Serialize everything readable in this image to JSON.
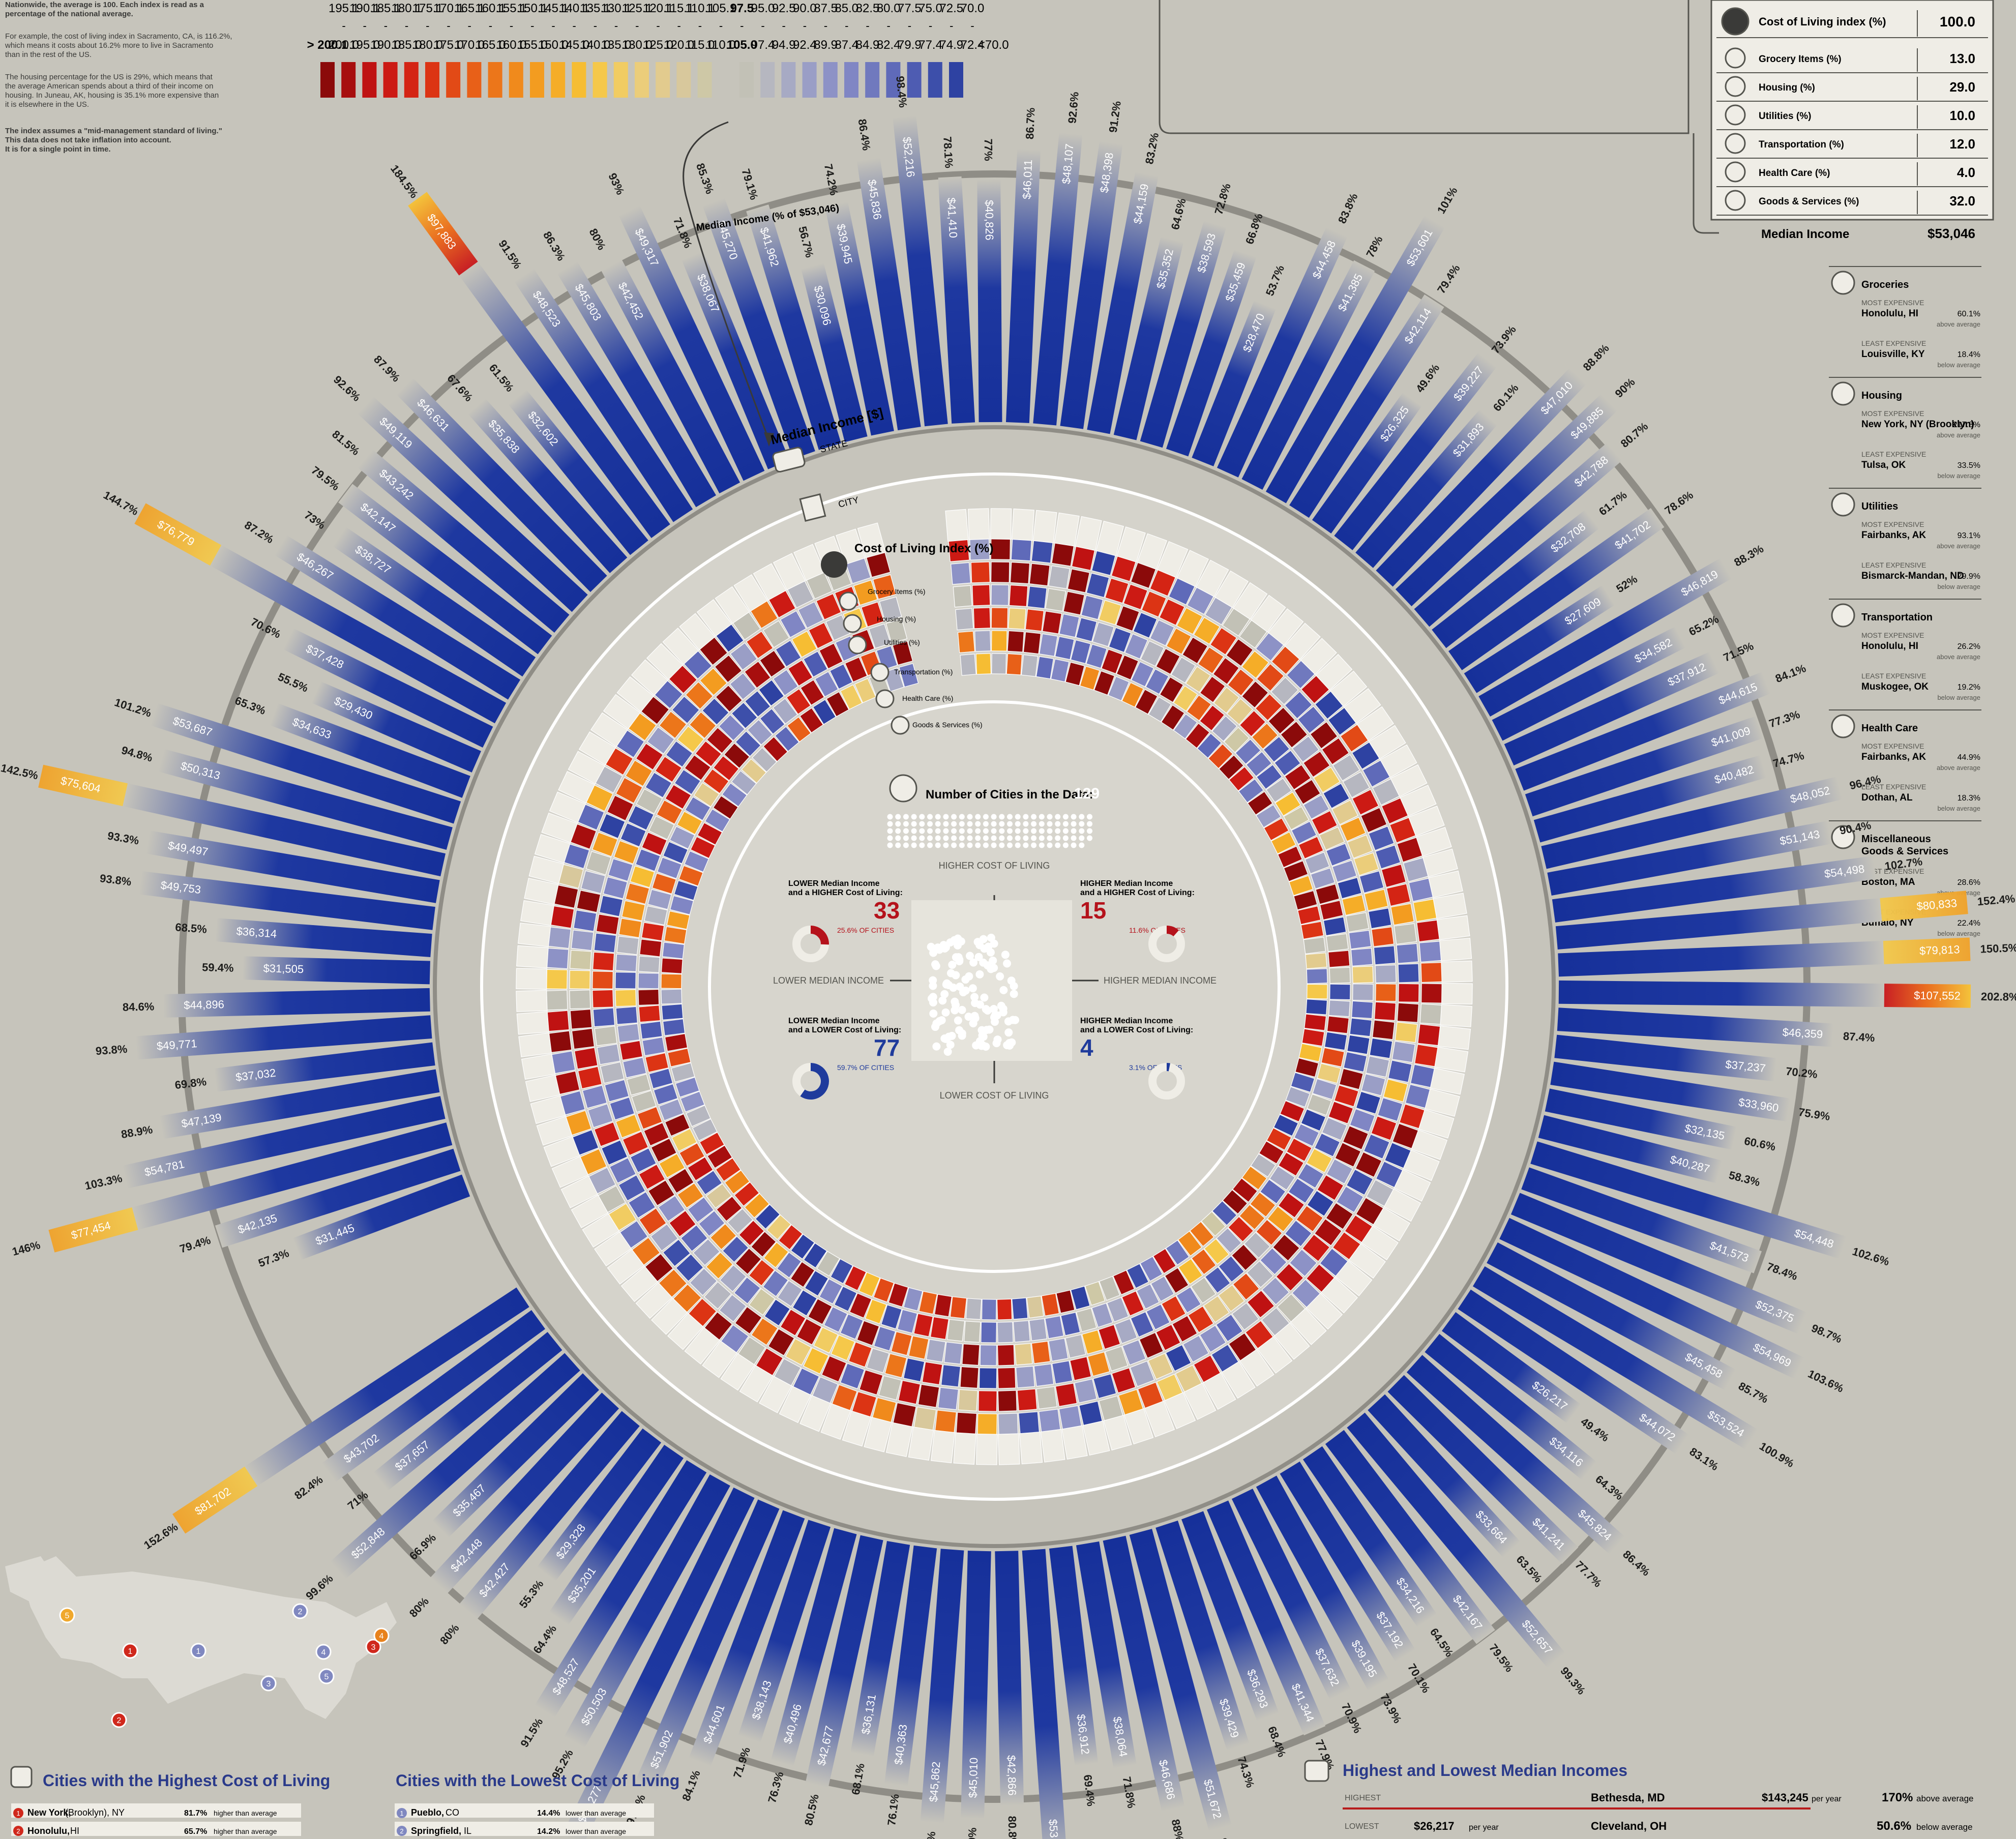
{
  "intro": {
    "line1": "Nationwide, the average is 100. Each index is read as a",
    "line2": "percentage of the national average.",
    "line3": "For example, the cost of living index in Sacramento, CA, is 116.2%,",
    "line4": "which means it costs about 16.2% more to live in Sacramento",
    "line5": "than in the rest of the US.",
    "line6": "The housing percentage for the US is 29%, which means that",
    "line7": "the average American spends about a third of their income on",
    "line8": "housing. In Juneau, AK, housing is 35.1% more expensive than",
    "line9": "it is elsewhere in the US.",
    "line10": "The index assumes a \"mid-management standard of living.\"",
    "line11": "This data does not take inflation into account.",
    "line12": "It is for a single point in time."
  },
  "scale": {
    "colors": [
      "#8b0a0a",
      "#a70e0e",
      "#bf1212",
      "#cc1a14",
      "#d42414",
      "#dc3414",
      "#e24a16",
      "#e86018",
      "#ec761a",
      "#f08a1c",
      "#f39c20",
      "#f5ad28",
      "#f6bd33",
      "#f5c84a",
      "#f1cc62",
      "#ebcd7a",
      "#e2cb8e",
      "#d8c89c",
      "#cec8a6",
      "#c2c1b6",
      "#b6b7c0",
      "#a7aac4",
      "#9a9ec6",
      "#8d92c6",
      "#8086c4",
      "#7079be",
      "#5f6ab9",
      "#4e5cb2",
      "#3d4faa",
      "#2e42a2"
    ],
    "uppers": [
      "",
      "195.1",
      "190.1",
      "185.1",
      "180.1",
      "175.1",
      "170.1",
      "165.1",
      "160.1",
      "155.1",
      "150.1",
      "145.1",
      "140.1",
      "135.1",
      "130.1",
      "125.1",
      "120.1",
      "115.1",
      "110.1",
      "105.1",
      "97.5",
      "95.0",
      "92.5",
      "90.0",
      "87.5",
      "85.0",
      "82.5",
      "80.0",
      "77.5",
      "75.0",
      "72.5",
      "70.0"
    ],
    "lowers": [
      "> 200.1",
      "200.0",
      "195.0",
      "190.0",
      "185.0",
      "180.0",
      "175.0",
      "170.0",
      "165.0",
      "160.0",
      "155.0",
      "150.0",
      "145.0",
      "140.0",
      "135.0",
      "130.0",
      "125.0",
      "120.0",
      "115.0",
      "110.0",
      "105.0",
      "97.4",
      "94.9",
      "92.4",
      "89.9",
      "87.4",
      "84.9",
      "82.4",
      "79.9",
      "77.4",
      "74.9",
      "72.4",
      "<70.0"
    ]
  },
  "legend_table": {
    "rows": [
      {
        "icon": "gauge-icon",
        "label": "Cost of Living index (%)",
        "value": "100.0"
      },
      {
        "icon": "fork-knife-icon",
        "label": "Grocery Items (%)",
        "value": "13.0"
      },
      {
        "icon": "house-icon",
        "label": "Housing (%)",
        "value": "29.0"
      },
      {
        "icon": "bulb-icon",
        "label": "Utilities (%)",
        "value": "10.0"
      },
      {
        "icon": "car-icon",
        "label": "Transportation (%)",
        "value": "12.0"
      },
      {
        "icon": "cross-icon",
        "label": "Health Care (%)",
        "value": "4.0"
      },
      {
        "icon": "shirt-icon",
        "label": "Goods & Services (%)",
        "value": "32.0"
      }
    ],
    "median_label": "Median Income",
    "median_value": "$53,046"
  },
  "extremes": [
    {
      "icon": "fork-knife-icon",
      "title": "Groceries",
      "most_label": "MOST EXPENSIVE",
      "most_city": "Honolulu, HI",
      "most_value": "60.1%",
      "most_note": "above average",
      "least_label": "LEAST EXPENSIVE",
      "least_city": "Louisville, KY",
      "least_value": "18.4%",
      "least_note": "below average"
    },
    {
      "icon": "house-icon",
      "title": "Housing",
      "most_label": "MOST EXPENSIVE",
      "most_city": "New York, NY (Brooklyn)",
      "most_value": "217.8%",
      "most_note": "above average",
      "least_label": "LEAST EXPENSIVE",
      "least_city": "Tulsa, OK",
      "least_value": "33.5%",
      "least_note": "below average"
    },
    {
      "icon": "bulb-icon",
      "title": "Utilities",
      "most_label": "MOST EXPENSIVE",
      "most_city": "Fairbanks, AK",
      "most_value": "93.1%",
      "most_note": "above average",
      "least_label": "LEAST EXPENSIVE",
      "least_city": "Bismarck-Mandan, ND",
      "least_value": "29.9%",
      "least_note": "below average"
    },
    {
      "icon": "car-icon",
      "title": "Transportation",
      "most_label": "MOST EXPENSIVE",
      "most_city": "Honolulu, HI",
      "most_value": "26.2%",
      "most_note": "above average",
      "least_label": "LEAST EXPENSIVE",
      "least_city": "Muskogee, OK",
      "least_value": "19.2%",
      "least_note": "below average"
    },
    {
      "icon": "cross-icon",
      "title": "Health Care",
      "most_label": "MOST EXPENSIVE",
      "most_city": "Fairbanks, AK",
      "most_value": "44.9%",
      "most_note": "above average",
      "least_label": "LEAST EXPENSIVE",
      "least_city": "Dothan, AL",
      "least_value": "18.3%",
      "least_note": "below average"
    },
    {
      "icon": "shirt-icon",
      "title": "Miscellaneous Goods & Services",
      "most_label": "MOST EXPENSIVE",
      "most_city": "Boston, MA",
      "most_value": "28.6%",
      "most_note": "above average",
      "least_label": "LEAST EXPENSIVE",
      "least_city": "Buffalo, NY",
      "least_value": "22.4%",
      "least_note": "below average"
    }
  ],
  "ring_labels": {
    "median_income_pct": "Median Income (% of $53,046)",
    "median_income": "Median Income [$]",
    "state": "STATE",
    "city": "CITY",
    "col": "Cost of Living Index (%)",
    "grocery": "Grocery Items (%)",
    "housing": "Housing (%)",
    "utilities": "Utilities (%)",
    "transportation": "Transportation (%)",
    "health": "Health Care (%)",
    "goods": "Goods & Services (%)"
  },
  "center": {
    "count_label": "Number of Cities in the Data:",
    "count_value": "129",
    "higher_col": "HIGHER COST OF LIVING",
    "lower_col": "LOWER COST OF LIVING",
    "lower_income": "LOWER MEDIAN INCOME",
    "higher_income": "HIGHER MEDIAN INCOME",
    "quadrants": [
      {
        "line1": "LOWER Median Income",
        "line2": "and a HIGHER Cost of Living:",
        "count": "33",
        "pct": "25.6% OF CITIES",
        "color": "#b5121b",
        "fraction": 0.256
      },
      {
        "line1": "HIGHER Median Income",
        "line2": "and a HIGHER Cost of Living:",
        "count": "15",
        "pct": "11.6% OF CITIES",
        "color": "#b5121b",
        "fraction": 0.116
      },
      {
        "line1": "LOWER Median Income",
        "line2": "and a LOWER Cost of Living:",
        "count": "77",
        "pct": "59.7% OF CITIES",
        "color": "#1f3b9c",
        "fraction": 0.597
      },
      {
        "line1": "HIGHER Median Income",
        "line2": "and a LOWER Cost of Living:",
        "count": "4",
        "pct": "3.1% OF CITIES",
        "color": "#1f3b9c",
        "fraction": 0.031
      }
    ]
  },
  "map_markers": [
    {
      "n": "1",
      "color": "#8088c0"
    },
    {
      "n": "2",
      "color": "#8088c0"
    },
    {
      "n": "3",
      "color": "#8088c0"
    },
    {
      "n": "4",
      "color": "#8088c0"
    },
    {
      "n": "5",
      "color": "#8088c0"
    },
    {
      "n": "1",
      "color": "#d0281c"
    },
    {
      "n": "2",
      "color": "#d0281c"
    },
    {
      "n": "3",
      "color": "#d0281c"
    },
    {
      "n": "4",
      "color": "#e8821c"
    },
    {
      "n": "5",
      "color": "#f0a82c"
    }
  ],
  "bottom": {
    "highest_title": "Cities with the Highest Cost of Living",
    "highest": [
      {
        "n": "1",
        "city": "New York,",
        "detail": "(Brooklyn), NY",
        "pct": "81.7%",
        "note": "higher than average"
      },
      {
        "n": "2",
        "city": "Honolulu,",
        "detail": "HI",
        "pct": "65.7%",
        "note": "higher than average"
      }
    ],
    "lowest_title": "Cities with the Lowest Cost of Living",
    "lowest": [
      {
        "n": "1",
        "city": "Pueblo,",
        "detail": "CO",
        "pct": "14.4%",
        "note": "lower than average"
      },
      {
        "n": "2",
        "city": "Springfield,",
        "detail": "IL",
        "pct": "14.2%",
        "note": "lower than average"
      }
    ],
    "income_title": "Highest and Lowest Median Incomes",
    "highest_label": "HIGHEST",
    "highest_city": "Bethesda, MD",
    "highest_value": "$143,245",
    "highest_per": "per year",
    "highest_pct": "170%",
    "highest_note": "above average",
    "lowest_label": "LOWEST",
    "lowest_value": "$26,217",
    "lowest_per": "per year",
    "lowest_city": "Cleveland, OH",
    "lowest_pct": "50.6%",
    "lowest_note": "below average"
  },
  "chart_data": {
    "type": "radial-bar",
    "title": "",
    "series": [
      {
        "name": "Median Income (% of $53,046)",
        "values": [
          57.3,
          79.4,
          146.0,
          103.3,
          88.9,
          69.8,
          93.8,
          84.6,
          59.4,
          68.5,
          93.8,
          93.3,
          142.5,
          94.8,
          101.2,
          65.3,
          55.5,
          70.6,
          144.7,
          87.2,
          73.0,
          79.5,
          81.5,
          92.6,
          87.9,
          67.6,
          61.5,
          184.5,
          91.5,
          86.3,
          80.0,
          93.0,
          71.8,
          85.3,
          79.1,
          56.7,
          74.2,
          86.4,
          98.4,
          78.1,
          77.0,
          86.7,
          92.6,
          91.2,
          83.2,
          64.6,
          72.8,
          66.8,
          53.7,
          83.8,
          78.0,
          101.0,
          79.4,
          49.6,
          73.9,
          60.1,
          88.8,
          90.0,
          80.7,
          61.7,
          78.6,
          52.0,
          88.3,
          65.2,
          71.5,
          84.1,
          77.3,
          74.7,
          96.4,
          90.4,
          102.7,
          152.4,
          150.5,
          202.8,
          87.4,
          70.2,
          75.9,
          60.6,
          58.3,
          102.6,
          78.4,
          98.7,
          103.6,
          85.7,
          100.9,
          83.1,
          49.4,
          64.3,
          86.4,
          77.7,
          63.5,
          99.3,
          79.5,
          64.5,
          70.1,
          73.9,
          70.9,
          77.9,
          68.4,
          74.3,
          97.4,
          88.0,
          71.8,
          69.4,
          101.7,
          80.8,
          84.9,
          86.8,
          76.1,
          68.1,
          80.5,
          76.3,
          71.9,
          84.1,
          97.8,
          123.1,
          95.2,
          91.5,
          64.4,
          55.3,
          80.0,
          80.0,
          66.9,
          99.6,
          71.0,
          82.4,
          152.6
        ]
      },
      {
        "name": "Median Income [$]",
        "values": [
          31445,
          42135,
          77454,
          54781,
          47139,
          37032,
          49771,
          44896,
          31505,
          36314,
          49753,
          49497,
          75604,
          50313,
          53687,
          34633,
          29430,
          37428,
          76779,
          46267,
          38727,
          42147,
          43242,
          49119,
          46631,
          35838,
          32602,
          97883,
          48523,
          45803,
          42452,
          49317,
          38067,
          45270,
          41962,
          30096,
          39945,
          45836,
          52216,
          41410,
          40826,
          46011,
          48107,
          48398,
          44159,
          35352,
          38593,
          35459,
          28470,
          44458,
          41385,
          53601,
          42114,
          26325,
          39227,
          31893,
          47010,
          49885,
          42788,
          32708,
          41702,
          27609,
          46819,
          34582,
          37912,
          44615,
          41009,
          40482,
          48052,
          51143,
          54498,
          80833,
          79813,
          107552,
          46359,
          37237,
          33960,
          32135,
          40287,
          54448,
          41573,
          52375,
          54969,
          45458,
          53524,
          44072,
          26217,
          34116,
          45824,
          41241,
          33664,
          52657,
          42167,
          34216,
          37192,
          39195,
          37632,
          41344,
          36293,
          39429,
          51672,
          46686,
          38064,
          36912,
          53946,
          42866,
          45010,
          45862,
          40363,
          36131,
          42677,
          40496,
          38143,
          44601,
          51902,
          65277,
          50503,
          48527,
          35201,
          29328,
          42427,
          42448,
          35467,
          52848,
          37657,
          43702,
          81702
        ]
      }
    ],
    "center_cities": 129,
    "quadrants": {
      "lower_income_higher_col": 33,
      "higher_income_higher_col": 15,
      "lower_income_lower_col": 77,
      "higher_income_lower_col": 4
    },
    "legend": "top-right"
  }
}
